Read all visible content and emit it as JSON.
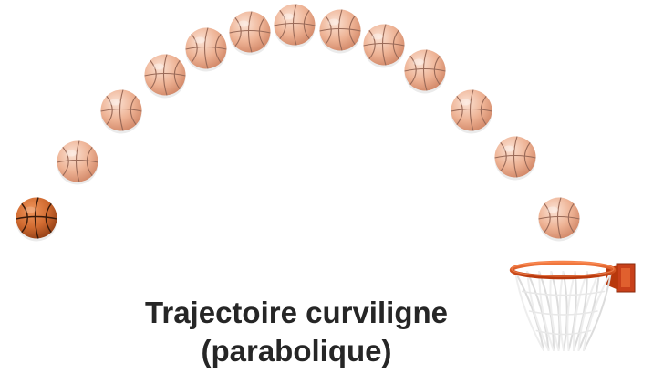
{
  "caption": {
    "line1": "Trajectoire curviligne",
    "line2": "(parabolique)"
  },
  "trajectory": {
    "ball_count": 13,
    "highlighted_ball": 1
  },
  "icons": {
    "ball": "basketball-icon",
    "hoop": "basketball-hoop-icon"
  },
  "colors": {
    "ball_faded": "#e8a98a",
    "ball_solid": "#c8622e",
    "rim": "#e0521e",
    "net": "#e6e6e6",
    "text": "#262626"
  }
}
